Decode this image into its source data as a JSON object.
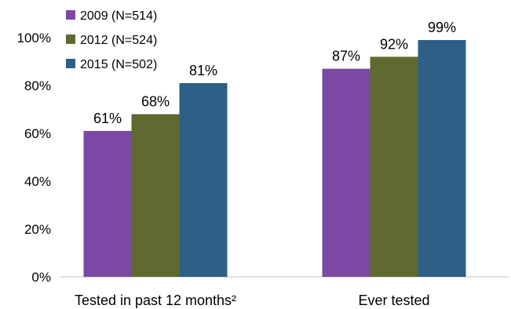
{
  "chart_data": {
    "type": "bar",
    "categories": [
      "Tested in past 12 months²",
      "Ever tested"
    ],
    "series": [
      {
        "name": "2009 (N=514)",
        "values": [
          61,
          87
        ],
        "color": "#7B48A4",
        "labels": [
          "61%",
          "87%"
        ]
      },
      {
        "name": "2012 (N=524)",
        "values": [
          68,
          92
        ],
        "color": "#606A30",
        "labels": [
          "68%",
          "92%"
        ]
      },
      {
        "name": "2015 (N=502)",
        "values": [
          81,
          99
        ],
        "color": "#2C6086",
        "labels": [
          "81%",
          "99%"
        ]
      }
    ],
    "y_ticks": [
      "0%",
      "20%",
      "40%",
      "60%",
      "80%",
      "100%"
    ],
    "ylim": [
      0,
      100
    ],
    "title": "",
    "xlabel": "",
    "ylabel": "",
    "grid": false,
    "legend_position": "top-left"
  }
}
